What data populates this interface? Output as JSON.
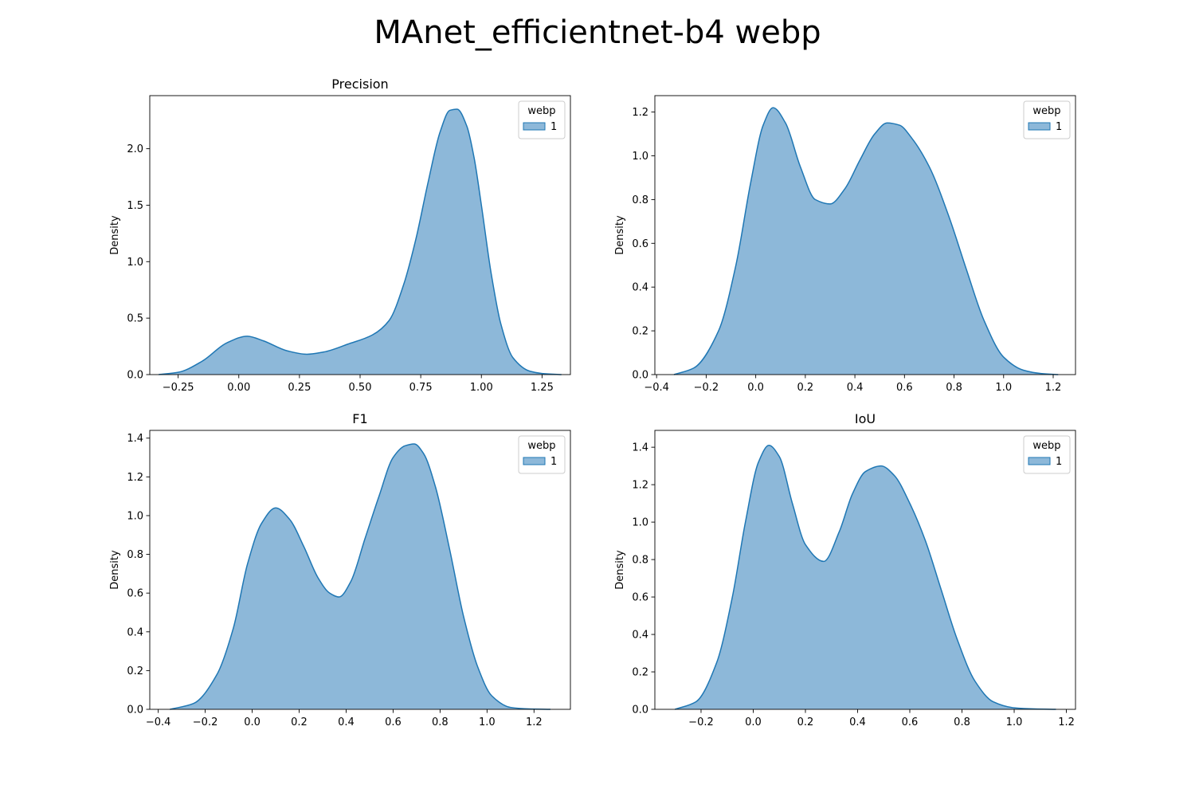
{
  "figure": {
    "title": "MAnet_efficientnet-b4 webp"
  },
  "chart_data": [
    {
      "type": "area",
      "title": "Precision",
      "xlabel": "",
      "ylabel": "Density",
      "xlim": [
        -0.367,
        1.367
      ],
      "ylim": [
        0,
        2.47
      ],
      "xticks": [
        -0.25,
        0.0,
        0.25,
        0.5,
        0.75,
        1.0,
        1.25
      ],
      "xtick_labels": [
        "−0.25",
        "0.00",
        "0.25",
        "0.50",
        "0.75",
        "1.00",
        "1.25"
      ],
      "yticks": [
        0.0,
        0.5,
        1.0,
        1.5,
        2.0
      ],
      "ytick_labels": [
        "0.0",
        "0.5",
        "1.0",
        "1.5",
        "2.0"
      ],
      "legend": {
        "title": "webp",
        "entries": [
          "1"
        ],
        "placement": "upper right"
      },
      "color": "#1f77b4",
      "fill": "#8db8d9",
      "series": [
        {
          "name": "1",
          "x": [
            -0.33,
            -0.25,
            -0.15,
            -0.05,
            0.035,
            0.1,
            0.2,
            0.28,
            0.35,
            0.45,
            0.55,
            0.62,
            0.68,
            0.73,
            0.78,
            0.83,
            0.87,
            0.9,
            0.94,
            0.97,
            1.0,
            1.04,
            1.08,
            1.13,
            1.2,
            1.25,
            1.33
          ],
          "y": [
            0.0,
            0.02,
            0.12,
            0.28,
            0.34,
            0.3,
            0.21,
            0.18,
            0.2,
            0.27,
            0.35,
            0.48,
            0.8,
            1.2,
            1.7,
            2.15,
            2.34,
            2.35,
            2.2,
            1.92,
            1.5,
            0.9,
            0.45,
            0.15,
            0.03,
            0.01,
            0.0
          ]
        }
      ]
    },
    {
      "type": "area",
      "title": "",
      "xlabel": "",
      "ylabel": "Density",
      "xlim": [
        -0.407,
        1.29
      ],
      "ylim": [
        0,
        1.275
      ],
      "xticks": [
        -0.4,
        -0.2,
        0.0,
        0.2,
        0.4,
        0.6,
        0.8,
        1.0,
        1.2
      ],
      "xtick_labels": [
        "−0.4",
        "−0.2",
        "0.0",
        "0.2",
        "0.4",
        "0.6",
        "0.8",
        "1.0",
        "1.2"
      ],
      "yticks": [
        0.0,
        0.2,
        0.4,
        0.6,
        0.8,
        1.0,
        1.2
      ],
      "ytick_labels": [
        "0.0",
        "0.2",
        "0.4",
        "0.6",
        "0.8",
        "1.0",
        "1.2"
      ],
      "legend": {
        "title": "webp",
        "entries": [
          "1"
        ],
        "placement": "upper right"
      },
      "color": "#1f77b4",
      "fill": "#8db8d9",
      "series": [
        {
          "name": "1",
          "x": [
            -0.33,
            -0.25,
            -0.15,
            -0.08,
            -0.02,
            0.03,
            0.07,
            0.12,
            0.18,
            0.24,
            0.3,
            0.36,
            0.42,
            0.48,
            0.53,
            0.58,
            0.63,
            0.7,
            0.78,
            0.85,
            0.92,
            1.0,
            1.08,
            1.15,
            1.22
          ],
          "y": [
            0.0,
            0.03,
            0.2,
            0.5,
            0.88,
            1.14,
            1.22,
            1.15,
            0.95,
            0.8,
            0.78,
            0.85,
            0.98,
            1.1,
            1.15,
            1.14,
            1.08,
            0.95,
            0.72,
            0.48,
            0.25,
            0.08,
            0.02,
            0.005,
            0.0
          ]
        }
      ]
    },
    {
      "type": "area",
      "title": "F1",
      "xlabel": "",
      "ylabel": "Density",
      "xlim": [
        -0.436,
        1.355
      ],
      "ylim": [
        0,
        1.44
      ],
      "xticks": [
        -0.4,
        -0.2,
        0.0,
        0.2,
        0.4,
        0.6,
        0.8,
        1.0,
        1.2
      ],
      "xtick_labels": [
        "−0.4",
        "−0.2",
        "0.0",
        "0.2",
        "0.4",
        "0.6",
        "0.8",
        "1.0",
        "1.2"
      ],
      "yticks": [
        0.0,
        0.2,
        0.4,
        0.6,
        0.8,
        1.0,
        1.2,
        1.4
      ],
      "ytick_labels": [
        "0.0",
        "0.2",
        "0.4",
        "0.6",
        "0.8",
        "1.0",
        "1.2",
        "1.4"
      ],
      "legend": {
        "title": "webp",
        "entries": [
          "1"
        ],
        "placement": "upper right"
      },
      "color": "#1f77b4",
      "fill": "#8db8d9",
      "series": [
        {
          "name": "1",
          "x": [
            -0.35,
            -0.25,
            -0.15,
            -0.08,
            -0.02,
            0.04,
            0.1,
            0.16,
            0.22,
            0.28,
            0.33,
            0.37,
            0.42,
            0.48,
            0.54,
            0.6,
            0.65,
            0.69,
            0.73,
            0.78,
            0.84,
            0.9,
            0.96,
            1.02,
            1.1,
            1.18,
            1.27
          ],
          "y": [
            0.0,
            0.03,
            0.18,
            0.42,
            0.75,
            0.96,
            1.04,
            0.98,
            0.84,
            0.68,
            0.6,
            0.58,
            0.66,
            0.88,
            1.1,
            1.3,
            1.36,
            1.37,
            1.32,
            1.15,
            0.83,
            0.48,
            0.22,
            0.07,
            0.01,
            0.002,
            0.0
          ]
        }
      ]
    },
    {
      "type": "area",
      "title": "IoU",
      "xlabel": "",
      "ylabel": "Density",
      "xlim": [
        -0.377,
        1.235
      ],
      "ylim": [
        0,
        1.49
      ],
      "xticks": [
        -0.2,
        0.0,
        0.2,
        0.4,
        0.6,
        0.8,
        1.0,
        1.2
      ],
      "xtick_labels": [
        "−0.2",
        "0.0",
        "0.2",
        "0.4",
        "0.6",
        "0.8",
        "1.0",
        "1.2"
      ],
      "yticks": [
        0.0,
        0.2,
        0.4,
        0.6,
        0.8,
        1.0,
        1.2,
        1.4
      ],
      "ytick_labels": [
        "0.0",
        "0.2",
        "0.4",
        "0.6",
        "0.8",
        "1.0",
        "1.2",
        "1.4"
      ],
      "legend": {
        "title": "webp",
        "entries": [
          "1"
        ],
        "placement": "upper right"
      },
      "color": "#1f77b4",
      "fill": "#8db8d9",
      "series": [
        {
          "name": "1",
          "x": [
            -0.3,
            -0.22,
            -0.14,
            -0.08,
            -0.03,
            0.02,
            0.06,
            0.1,
            0.15,
            0.2,
            0.27,
            0.33,
            0.38,
            0.43,
            0.49,
            0.54,
            0.6,
            0.66,
            0.72,
            0.78,
            0.85,
            0.92,
            1.0,
            1.08,
            1.16
          ],
          "y": [
            0.0,
            0.04,
            0.25,
            0.6,
            1.0,
            1.32,
            1.41,
            1.35,
            1.1,
            0.88,
            0.79,
            0.95,
            1.15,
            1.27,
            1.3,
            1.25,
            1.1,
            0.9,
            0.64,
            0.38,
            0.15,
            0.04,
            0.008,
            0.002,
            0.0
          ]
        }
      ]
    }
  ]
}
